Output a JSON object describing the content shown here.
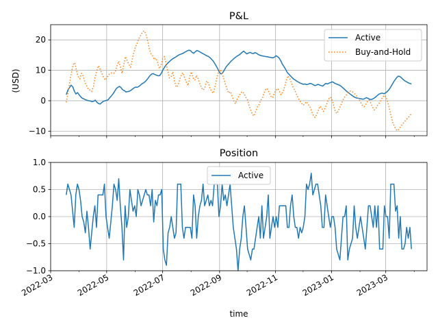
{
  "chart_data": [
    {
      "type": "line",
      "title": "P&L",
      "ylabel": "(USD)",
      "xlabel": "",
      "ylim": [
        -11.5,
        25
      ],
      "yticks": [
        -10,
        0,
        10,
        20
      ],
      "x_start": "2022-03-18",
      "x_end": "2023-03-29",
      "xlim": [
        "2022-03-01",
        "2023-04-15"
      ],
      "xticks": [
        "2022-03",
        "2022-05",
        "2022-07",
        "2022-09",
        "2022-11",
        "2023-01",
        "2023-03"
      ],
      "grid": true,
      "legend": "top-right",
      "series": [
        {
          "name": "Active",
          "color": "#1f77b4",
          "style": "solid",
          "values": [
            2.0,
            3.5,
            4.3,
            5.1,
            4.6,
            3.2,
            2.2,
            2.7,
            1.9,
            1.3,
            0.8,
            0.6,
            0.3,
            0.1,
            0.0,
            -0.1,
            -0.3,
            -0.2,
            0.2,
            -0.5,
            -0.9,
            -1.1,
            -0.6,
            -0.2,
            0.0,
            0.1,
            0.3,
            1.0,
            1.6,
            2.3,
            3.1,
            4.0,
            4.4,
            4.7,
            4.3,
            3.6,
            3.3,
            2.9,
            3.0,
            3.1,
            3.4,
            3.8,
            4.2,
            4.5,
            4.4,
            4.7,
            5.1,
            5.6,
            5.9,
            6.3,
            6.9,
            7.6,
            8.3,
            8.8,
            8.9,
            8.6,
            8.4,
            8.2,
            8.3,
            9.1,
            10.2,
            11.1,
            11.8,
            12.4,
            12.9,
            13.4,
            13.8,
            14.1,
            14.4,
            14.8,
            15.1,
            15.3,
            15.5,
            15.8,
            16.1,
            16.4,
            16.6,
            16.5,
            15.9,
            15.6,
            16.1,
            16.5,
            16.3,
            16.0,
            15.7,
            15.4,
            15.1,
            14.8,
            14.6,
            14.2,
            13.7,
            13.1,
            12.3,
            11.4,
            10.4,
            9.3,
            8.8,
            9.2,
            10.1,
            11.0,
            11.7,
            12.3,
            12.9,
            13.4,
            13.9,
            14.3,
            14.7,
            15.0,
            15.4,
            15.9,
            16.3,
            15.8,
            15.4,
            15.7,
            15.9,
            15.6,
            15.5,
            15.8,
            15.6,
            15.2,
            15.0,
            14.8,
            14.7,
            14.6,
            14.5,
            14.4,
            14.3,
            14.2,
            14.1,
            14.3,
            14.8,
            14.5,
            14.0,
            13.1,
            12.0,
            11.2,
            10.3,
            9.3,
            8.7,
            8.2,
            7.6,
            7.1,
            6.8,
            6.4,
            6.1,
            5.8,
            5.6,
            5.4,
            5.5,
            5.3,
            5.4,
            5.7,
            5.6,
            5.3,
            5.0,
            5.1,
            5.4,
            5.2,
            5.0,
            4.8,
            5.3,
            5.7,
            5.5,
            5.8,
            6.0,
            6.2,
            5.9,
            5.6,
            5.4,
            5.2,
            4.9,
            4.5,
            4.0,
            3.5,
            3.0,
            2.6,
            2.2,
            1.8,
            1.4,
            1.1,
            0.9,
            0.8,
            0.7,
            0.6,
            0.5,
            0.7,
            1.0,
            0.8,
            0.5,
            0.4,
            0.6,
            0.9,
            1.3,
            1.8,
            2.2,
            2.4,
            2.5,
            2.3,
            2.6,
            3.0,
            3.6,
            4.4,
            5.3,
            6.2,
            7.0,
            7.7,
            8.1,
            7.9,
            7.4,
            6.9,
            6.5,
            6.2,
            5.9,
            5.7,
            5.5
          ]
        },
        {
          "name": "Buy-and-Hold",
          "color": "#ff7f0e",
          "style": "dotted",
          "values": [
            -0.5,
            2.5,
            5.8,
            9.0,
            11.8,
            12.5,
            10.0,
            8.0,
            7.2,
            9.0,
            8.2,
            6.0,
            5.0,
            3.8,
            3.5,
            3.0,
            4.5,
            7.6,
            9.8,
            11.5,
            10.4,
            9.0,
            7.8,
            6.8,
            7.5,
            8.5,
            9.0,
            9.2,
            9.0,
            9.5,
            11.5,
            13.0,
            11.2,
            9.0,
            12.0,
            14.5,
            13.2,
            12.0,
            11.0,
            13.5,
            16.0,
            17.8,
            19.0,
            20.5,
            21.5,
            22.5,
            23.0,
            22.0,
            20.0,
            17.2,
            15.5,
            14.8,
            13.5,
            14.0,
            12.5,
            10.6,
            11.5,
            13.8,
            14.5,
            12.0,
            9.8,
            7.5,
            8.0,
            9.5,
            6.5,
            4.5,
            5.0,
            6.8,
            8.5,
            9.2,
            7.5,
            6.0,
            5.0,
            8.0,
            9.5,
            7.5,
            6.8,
            8.4,
            7.2,
            5.5,
            4.2,
            3.5,
            4.5,
            6.5,
            5.8,
            4.0,
            3.0,
            2.5,
            4.8,
            7.5,
            9.5,
            10.2,
            9.0,
            7.5,
            5.5,
            3.8,
            2.5,
            3.0,
            1.5,
            0.0,
            -1.0,
            0.5,
            1.5,
            2.5,
            3.0,
            2.4,
            1.2,
            0.5,
            -1.5,
            -3.0,
            -4.5,
            -5.0,
            -3.5,
            -2.0,
            -1.2,
            0.2,
            1.0,
            2.6,
            4.0,
            3.8,
            2.5,
            1.4,
            1.0,
            2.5,
            3.5,
            4.0,
            3.0,
            2.0,
            2.8,
            4.5,
            6.5,
            8.2,
            7.5,
            6.0,
            4.5,
            3.5,
            2.2,
            1.0,
            0.0,
            -0.8,
            -1.5,
            -1.0,
            -0.3,
            -1.2,
            -2.0,
            -3.5,
            -4.8,
            -5.5,
            -4.5,
            -3.2,
            -1.8,
            -2.5,
            -3.5,
            -2.4,
            -1.0,
            0.5,
            1.2,
            0.5,
            -1.5,
            -3.5,
            -4.2,
            -3.0,
            -1.8,
            -0.5,
            0.8,
            1.5,
            2.2,
            2.8,
            3.2,
            3.0,
            2.5,
            2.0,
            1.2,
            0.5,
            -0.5,
            -1.5,
            -2.0,
            -1.2,
            -0.3,
            0.2,
            -0.8,
            -2.0,
            -3.0,
            -2.5,
            -1.5,
            -0.8,
            0.2,
            1.2,
            1.8,
            1.2,
            -0.5,
            -2.8,
            -5.0,
            -7.2,
            -8.5,
            -9.5,
            -9.8,
            -9.0,
            -8.2,
            -7.5,
            -6.8,
            -6.2,
            -5.5,
            -5.0,
            -4.2
          ]
        }
      ]
    },
    {
      "type": "line",
      "title": "Position",
      "xlabel": "time",
      "ylabel": "",
      "ylim": [
        -1.0,
        1.0
      ],
      "yticks": [
        -1.0,
        -0.5,
        0.0,
        0.5,
        1.0
      ],
      "x_start": "2022-03-18",
      "x_end": "2023-03-29",
      "xlim": [
        "2022-03-01",
        "2023-04-15"
      ],
      "xticks": [
        "2022-03",
        "2022-05",
        "2022-07",
        "2022-09",
        "2022-11",
        "2023-01",
        "2023-03"
      ],
      "grid": true,
      "legend": "top-center",
      "series": [
        {
          "name": "Active",
          "color": "#1f77b4",
          "style": "solid",
          "values": [
            0.4,
            0.6,
            0.5,
            0.4,
            0.1,
            -0.2,
            0.4,
            0.6,
            0.5,
            0.3,
            0.0,
            -0.1,
            -0.3,
            0.1,
            -0.2,
            -0.6,
            -0.3,
            0.0,
            0.2,
            -0.2,
            0.4,
            0.4,
            0.4,
            0.4,
            0.6,
            0.0,
            -0.2,
            -0.4,
            -0.1,
            0.2,
            0.6,
            0.5,
            0.3,
            0.7,
            0.2,
            -0.2,
            -0.8,
            0.2,
            -0.2,
            0.0,
            0.5,
            0.3,
            0.1,
            0.2,
            0.0,
            0.5,
            0.4,
            0.2,
            0.3,
            0.4,
            0.5,
            0.4,
            0.4,
            0.2,
            0.5,
            -0.1,
            0.3,
            0.2,
            0.4,
            0.4,
            0.5,
            -0.6,
            -0.8,
            -0.9,
            -0.3,
            -0.2,
            0.0,
            -0.2,
            -0.4,
            -0.3,
            0.6,
            0.6,
            0.6,
            -0.2,
            -0.4,
            -0.2,
            -0.2,
            -0.2,
            -0.2,
            -0.4,
            0.4,
            0.2,
            -0.4,
            0.0,
            0.2,
            0.3,
            0.6,
            0.2,
            0.3,
            0.4,
            0.2,
            0.3,
            0.2,
            0.6,
            0.6,
            0.6,
            0.0,
            0.2,
            0.6,
            0.3,
            0.4,
            0.2,
            0.4,
            0.6,
            0.2,
            -0.2,
            -0.4,
            -0.6,
            -1.0,
            -0.6,
            -0.4,
            0.0,
            0.2,
            -0.2,
            -0.6,
            -0.7,
            -0.8,
            -0.6,
            -0.6,
            -0.4,
            -0.2,
            0.0,
            -0.4,
            0.2,
            -0.4,
            -0.2,
            0.0,
            0.4,
            -0.4,
            -0.2,
            0.0,
            -0.2,
            0.0,
            -0.2,
            0.2,
            0.2,
            0.2,
            0.2,
            0.2,
            -0.2,
            -0.2,
            0.2,
            0.4,
            0.0,
            -0.2,
            -0.2,
            -0.4,
            -0.2,
            -0.3,
            -0.2,
            0.0,
            0.6,
            0.5,
            0.6,
            0.8,
            0.4,
            0.5,
            0.6,
            0.6,
            0.4,
            0.2,
            -0.2,
            -0.2,
            0.4,
            0.2,
            0.0,
            -0.2,
            0.0,
            0.0,
            -0.2,
            -0.6,
            -0.7,
            -0.8,
            -0.4,
            0.0,
            0.0,
            0.2,
            -0.8,
            -0.6,
            -0.5,
            -0.4,
            0.2,
            -0.2,
            -0.4,
            -0.2,
            0.0,
            -0.2,
            -0.4,
            -0.6,
            -0.2,
            0.2,
            0.2,
            0.0,
            -0.2,
            0.2,
            -0.2,
            0.2,
            -0.6,
            -0.6,
            -0.6,
            0.2,
            0.0,
            0.0,
            -0.4,
            0.6,
            0.6,
            0.6,
            0.1,
            0.2,
            -0.4,
            0.0,
            -0.6,
            -0.6,
            -0.5,
            -0.2,
            -0.4,
            -0.2,
            -0.6
          ]
        }
      ]
    }
  ]
}
